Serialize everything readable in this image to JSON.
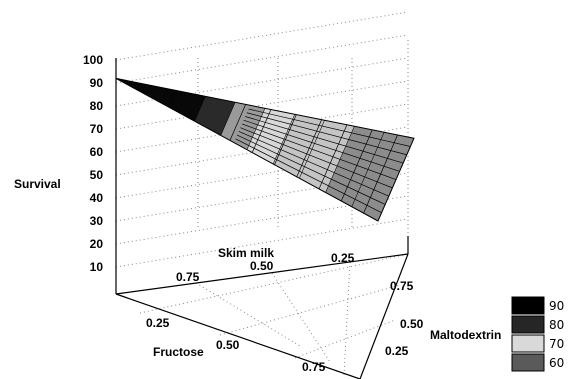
{
  "chart_data": {
    "type": "surface3d",
    "zlabel": "Survival",
    "axis_labels": {
      "skim_milk": "Skim milk",
      "fructose": "Fructose",
      "maltodextrin": "Maltodextrin"
    },
    "z_ticks": [
      "100",
      "90",
      "80",
      "70",
      "60",
      "50",
      "40",
      "30",
      "20",
      "10"
    ],
    "z_range": [
      0,
      100
    ],
    "skim_milk_ticks": [
      "0.75",
      "0.50",
      "0.25"
    ],
    "fructose_ticks": [
      "0.25",
      "0.50",
      "0.75"
    ],
    "maltodextrin_ticks": [
      "0.75",
      "0.50",
      "0.25"
    ],
    "surface": {
      "apex": {
        "label": "Skim milk = 1",
        "survival": 92
      },
      "far_edge": [
        {
          "position": 0.0,
          "survival": 66
        },
        {
          "position": 1.0,
          "survival": 30
        }
      ]
    },
    "legend": [
      {
        "label": "90",
        "color": "#000000"
      },
      {
        "label": "80",
        "color": "#262626"
      },
      {
        "label": "70",
        "color": "#d9d9d9"
      },
      {
        "label": "60",
        "color": "#5a5a5a"
      }
    ]
  }
}
